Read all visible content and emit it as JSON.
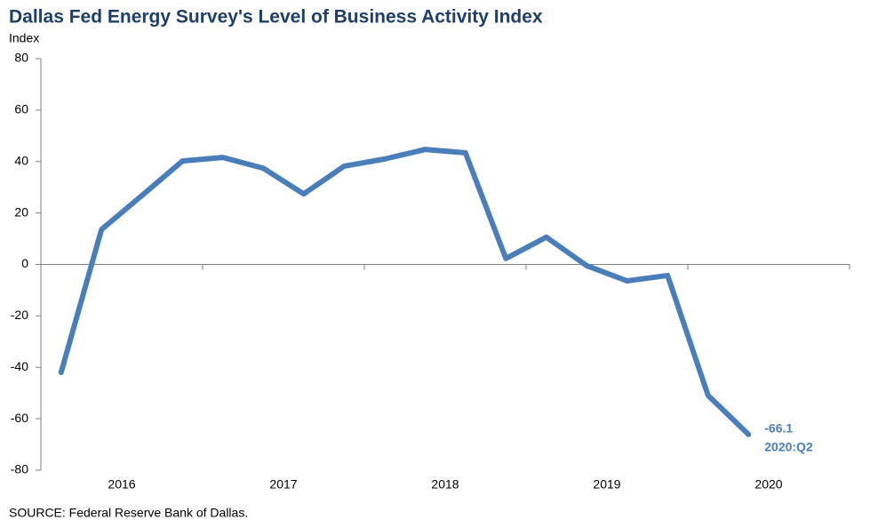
{
  "chart_data": {
    "type": "line",
    "title": "Dallas Fed Energy Survey's Level of Business Activity Index",
    "y_label": "Index",
    "source": "SOURCE:  Federal Reserve  Bank of Dallas.",
    "categories": [
      null,
      null,
      null,
      null,
      null,
      null,
      null,
      null,
      null,
      null,
      null,
      null,
      null,
      null,
      null,
      null,
      null,
      "2020:Q2",
      null,
      null
    ],
    "x_labels": [
      "2016",
      "2017",
      "2018",
      "2019",
      "2020"
    ],
    "series": [
      {
        "name": "Level of Business Activity Index",
        "color": "#4a7ebb",
        "values": [
          -42.0,
          13.6,
          26.8,
          40.2,
          41.6,
          37.4,
          27.4,
          38.2,
          41.0,
          44.7,
          43.4,
          2.3,
          10.6,
          -0.5,
          -6.4,
          -4.3,
          -50.9,
          -66.1,
          null,
          null
        ]
      }
    ],
    "ylim": [
      -80,
      80
    ],
    "yticks": [
      -80,
      -60,
      -40,
      -20,
      0,
      20,
      40,
      60,
      80
    ],
    "grid": false,
    "legend": false
  }
}
